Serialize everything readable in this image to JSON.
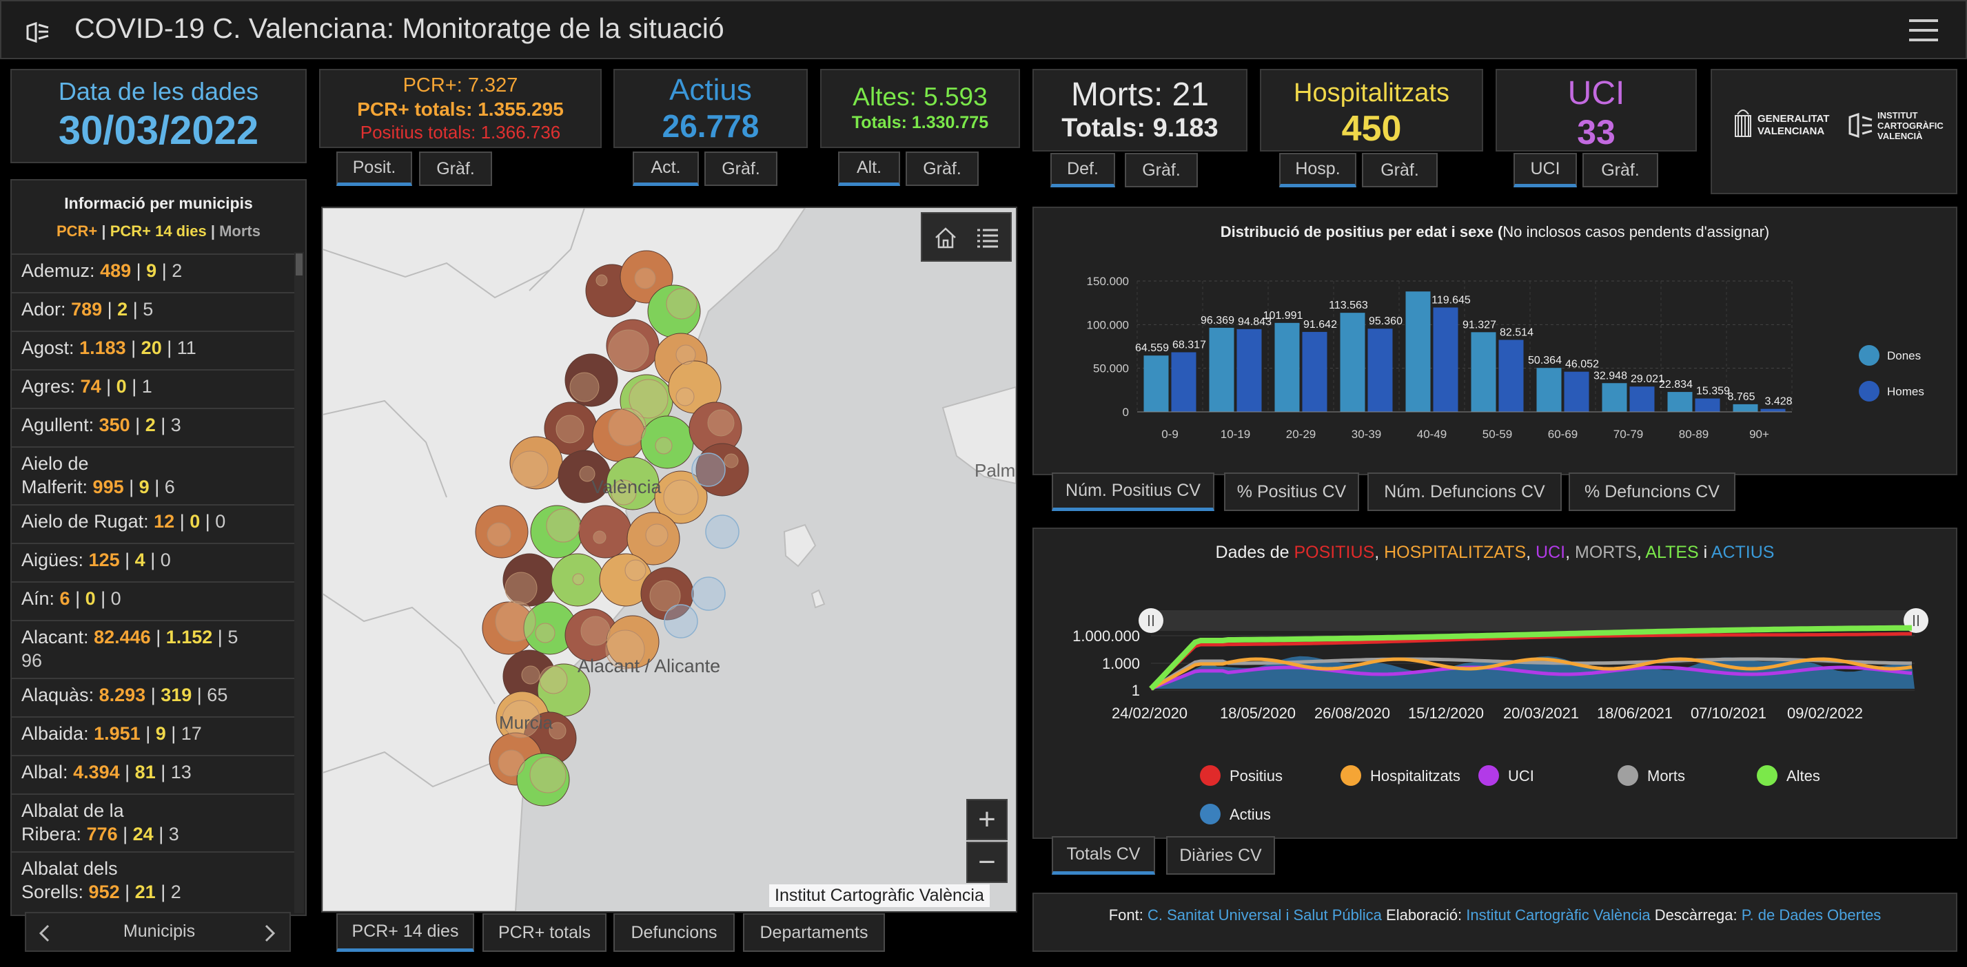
{
  "header": {
    "title": "COVID-19 C. Valenciana: Monitoratge de la situació"
  },
  "date_box": {
    "label": "Data de les dades",
    "value": "30/03/2022"
  },
  "pcr": {
    "line1": "PCR+: 7.327",
    "line2": "PCR+ totals: 1.355.295",
    "line3": "Positius totals: 1.366.736",
    "tab1": "Posit.",
    "tab2": "Gràf."
  },
  "actius": {
    "label": "Actius",
    "value": "26.778",
    "tab1": "Act.",
    "tab2": "Gràf."
  },
  "altes": {
    "line1": "Altes: 5.593",
    "line2": "Totals: 1.330.775",
    "tab1": "Alt.",
    "tab2": "Gràf."
  },
  "morts": {
    "line1": "Morts: 21",
    "line2": "Totals: 9.183",
    "tab1": "Def.",
    "tab2": "Gràf."
  },
  "hosp": {
    "label": "Hospitalitzats",
    "value": "450",
    "tab1": "Hosp.",
    "tab2": "Gràf."
  },
  "uci": {
    "label": "UCI",
    "value": "33",
    "tab1": "UCI",
    "tab2": "Gràf."
  },
  "logos": {
    "gv_line1": "GENERALITAT",
    "gv_line2": "VALENCIANA",
    "icv_line1": "INSTITUT",
    "icv_line2": "CARTOGRÀFIC",
    "icv_line3": "VALENCIÀ"
  },
  "municipis": {
    "title": "Informació per municipis",
    "legend": {
      "a": "PCR+",
      "b": "PCR+ 14 dies",
      "c": "Morts",
      "sep": "|"
    },
    "items": [
      {
        "l1": "Ademuz:",
        "pcr": "489",
        "p14": "9",
        "morts": "2"
      },
      {
        "l1": "Ador:",
        "pcr": "789",
        "p14": "2",
        "morts": "5"
      },
      {
        "l1": "Agost:",
        "pcr": "1.183",
        "p14": "20",
        "morts": "11"
      },
      {
        "l1": "Agres:",
        "pcr": "74",
        "p14": "0",
        "morts": "1"
      },
      {
        "l1": "Agullent:",
        "pcr": "350",
        "p14": "2",
        "morts": "3"
      },
      {
        "l0": "Aielo de",
        "l1": "Malferit:",
        "pcr": "995",
        "p14": "9",
        "morts": "6"
      },
      {
        "l1": "Aielo de Rugat:",
        "pcr": "12",
        "p14": "0",
        "morts": "0"
      },
      {
        "l1": "Aigües:",
        "pcr": "125",
        "p14": "4",
        "morts": "0"
      },
      {
        "l1": "Aín:",
        "pcr": "6",
        "p14": "0",
        "morts": "0"
      },
      {
        "l1": "Alacant:",
        "pcr": "82.446",
        "p14": "1.152",
        "morts": "5",
        "l2": "96"
      },
      {
        "l1": "Alaquàs:",
        "pcr": "8.293",
        "p14": "319",
        "morts": "65"
      },
      {
        "l1": "Albaida:",
        "pcr": "1.951",
        "p14": "9",
        "morts": "17"
      },
      {
        "l1": "Albal:",
        "pcr": "4.394",
        "p14": "81",
        "morts": "13"
      },
      {
        "l0": "Albalat de la",
        "l1": "Ribera:",
        "pcr": "776",
        "p14": "24",
        "morts": "3"
      },
      {
        "l0": "Albalat dels",
        "l1": "Sorells:",
        "pcr": "952",
        "p14": "21",
        "morts": "2"
      }
    ],
    "pager_label": "Municipis"
  },
  "map": {
    "labels": {
      "valencia": "València",
      "alacant": "Alacant / Alicante",
      "murcia": "Murcia",
      "palma": "Palm"
    },
    "attribution": "Institut Cartogràfic València",
    "zoom_in": "+",
    "zoom_out": "−",
    "tabs": [
      "PCR+ 14 dies",
      "PCR+ totals",
      "Defuncions",
      "Departaments"
    ]
  },
  "bar_chart": {
    "title_bold": "Distribució de positius per edat i sexe (",
    "title_rest": "No inclosos casos pendents d'assignar)",
    "tabs": [
      "Núm. Positius CV",
      "% Positius CV",
      "Núm. Defuncions CV",
      "% Defuncions CV"
    ]
  },
  "chart_data": [
    {
      "type": "bar",
      "categories": [
        "0-9",
        "10-19",
        "20-29",
        "30-39",
        "40-49",
        "50-59",
        "60-69",
        "70-79",
        "80-89",
        "90+"
      ],
      "series": [
        {
          "name": "Dones",
          "values": [
            64559,
            96369,
            101991,
            113563,
            138000,
            91327,
            50364,
            32948,
            22834,
            8765
          ],
          "labels": [
            "64.559",
            "96.369",
            "101.991",
            "113.563",
            "",
            "91.327",
            "50.364",
            "32.948",
            "22.834",
            "8.765"
          ]
        },
        {
          "name": "Homes",
          "values": [
            68317,
            94843,
            91642,
            95360,
            119645,
            82514,
            46052,
            29021,
            15359,
            3428
          ],
          "labels": [
            "68.317",
            "94.843",
            "91.642",
            "95.360",
            "119.645",
            "82.514",
            "46.052",
            "29.021",
            "15.359",
            "3.428"
          ]
        }
      ],
      "yticks": [
        "150.000",
        "100.000",
        "50.000",
        "0"
      ],
      "ylim": [
        0,
        150000
      ],
      "colors": {
        "Dones": "#3a8fbf",
        "Homes": "#2a5bb8"
      },
      "grid": true,
      "legend": "right"
    },
    {
      "type": "area",
      "scale": "log",
      "title_parts": [
        "Dades de ",
        "POSITIUS",
        ", ",
        "HOSPITALITZATS",
        ", ",
        "UCI",
        ", ",
        "MORTS",
        ", ",
        "ALTES",
        " i ",
        "ACTIUS"
      ],
      "x_ticks": [
        "24/02/2020",
        "18/05/2020",
        "26/08/2020",
        "15/12/2020",
        "20/03/2021",
        "18/06/2021",
        "07/10/2021",
        "09/02/2022"
      ],
      "y_ticks": [
        "1.000.000",
        "1.000",
        "1"
      ],
      "legend": [
        "Positius",
        "Hospitalitzats",
        "UCI",
        "Morts",
        "Altes",
        "Actius"
      ],
      "colors": {
        "Positius": "#e02a2a",
        "Hospitalitzats": "#f5a535",
        "UCI": "#b23ae8",
        "Morts": "#a0a0a0",
        "Altes": "#7be84a",
        "Actius": "#3a80bd"
      }
    }
  ],
  "time_chart": {
    "tabs": [
      "Totals CV",
      "Diàries CV"
    ]
  },
  "footer": {
    "font_label": "Font:",
    "font_link": "C. Sanitat Universal i Salut Pública",
    "elab_label": "Elaboració:",
    "elab_link": "Institut Cartogràfic València",
    "desc_label": "Descàrrega:",
    "desc_link": "P. de Dades Obertes"
  }
}
